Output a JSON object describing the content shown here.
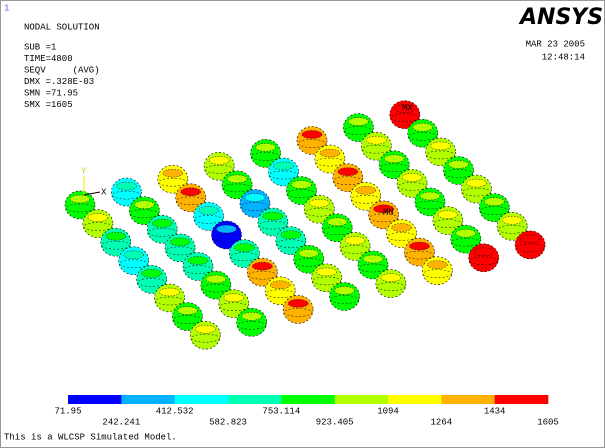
{
  "window_number": "1",
  "header": {
    "title": "NODAL SOLUTION",
    "lines": [
      "SUB =1",
      "TIME=4800",
      "SEQV     (AVG)",
      "DMX =.328E-03",
      "SMN =71.95",
      "SMX =1605"
    ]
  },
  "logo": "ANSYS",
  "date": "MAR 23 2005",
  "time": "12:48:14",
  "model_labels": {
    "mx": "MX",
    "mn": "MN",
    "x_axis": "X",
    "y_axis": "Y"
  },
  "legend": {
    "colors": [
      "#0000ff",
      "#00b2ff",
      "#00ffff",
      "#00ffb2",
      "#00ff00",
      "#b2ff00",
      "#ffff00",
      "#ffb200",
      "#ff0000"
    ],
    "labels": [
      "71.95",
      "242.241",
      "412.532",
      "582.823",
      "753.114",
      "923.405",
      "1094",
      "1264",
      "1434",
      "1605"
    ]
  },
  "footer": "This is a WLCSP Simulated Model."
}
